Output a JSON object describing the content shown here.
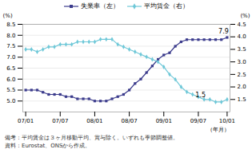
{
  "chart_data": {
    "type": "line",
    "xlabel": "（年月）",
    "ylabel": "(%)",
    "y2label": "(%)",
    "categories": [
      "07/01",
      null,
      null,
      null,
      null,
      null,
      "07/07",
      null,
      null,
      null,
      null,
      null,
      "08/01",
      null,
      null,
      null,
      null,
      null,
      "08/07",
      null,
      null,
      null,
      null,
      null,
      "09/01",
      null,
      null,
      null,
      null,
      null,
      "09/07",
      null,
      null,
      null,
      null,
      "10/01"
    ],
    "series": [
      {
        "name": "失業率（左）",
        "color": "#3b3b8c",
        "marker": "square",
        "axis": "y",
        "values": [
          5.5,
          5.5,
          5.5,
          5.4,
          5.3,
          5.3,
          5.3,
          5.2,
          5.2,
          5.1,
          5.1,
          5.1,
          5.0,
          5.0,
          5.0,
          5.1,
          5.2,
          5.3,
          5.5,
          5.8,
          6.0,
          6.3,
          6.6,
          6.9,
          7.1,
          7.2,
          7.5,
          7.7,
          7.8,
          7.8,
          7.8,
          7.8,
          7.8,
          7.8,
          7.8,
          7.9
        ]
      },
      {
        "name": "平均賃金（右）",
        "color": "#6fc8d8",
        "marker": "diamond",
        "axis": "y2",
        "values": [
          3.5,
          3.5,
          3.4,
          3.5,
          3.6,
          3.6,
          3.7,
          3.7,
          3.7,
          3.8,
          3.8,
          3.8,
          3.8,
          3.9,
          3.9,
          3.9,
          3.7,
          3.6,
          3.5,
          3.4,
          3.3,
          3.2,
          3.1,
          3.0,
          2.8,
          2.5,
          2.3,
          2.0,
          1.8,
          1.7,
          1.6,
          1.5,
          1.5,
          1.4,
          1.4,
          1.5
        ]
      }
    ],
    "ylim": [
      4.5,
      8.5
    ],
    "yticks": [
      {
        "value": 5.0,
        "label": "5.0"
      },
      5.5,
      {
        "value": 6.0,
        "label": "6.0"
      },
      6.5,
      {
        "value": 7.0,
        "label": "7.0"
      },
      7.5,
      {
        "value": 8.0,
        "label": "8.0"
      },
      8.5
    ],
    "y2lim": [
      1.0,
      4.5
    ],
    "y2ticks": [
      1.5,
      {
        "value": 2.0,
        "label": "2.0"
      },
      2.5,
      {
        "value": 3.0,
        "label": "3.0"
      },
      3.5,
      {
        "value": 4.0,
        "label": "4.0"
      },
      4.5
    ],
    "grid": true,
    "legend": "upper center",
    "annotations": [
      {
        "text": "7.9",
        "x": 33.5,
        "y": 8.1
      },
      {
        "text": "1.5",
        "x": 29.5,
        "y": 1.58,
        "axis": "y2"
      }
    ],
    "notes": [
      "備考：平均賃金は３ヶ月移動平均、賞与除く。いずれも季節調整値。",
      "資料：Eurostat、ONSから作成。"
    ]
  }
}
